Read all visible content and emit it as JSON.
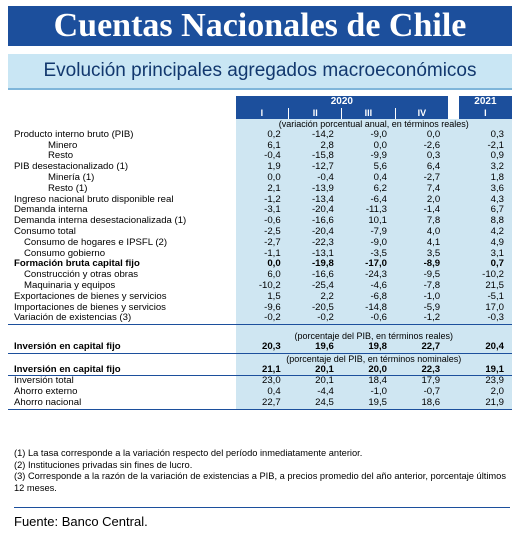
{
  "header": {
    "title": "Cuentas Nacionales de Chile",
    "subtitle": "Evolución principales agregados macroeconómicos"
  },
  "table": {
    "year_2020": "2020",
    "year_2021": "2021",
    "quarters_2020": [
      "I",
      "II",
      "III",
      "IV"
    ],
    "quarter_2021": "I",
    "note_growth": "(variación porcentual anual, en términos reales)",
    "note_real_pct": "(porcentaje del PIB, en términos reales)",
    "note_nominal_pct": "(porcentaje del PIB, en términos nominales)",
    "rows_growth": [
      {
        "label": "Producto interno bruto (PIB)",
        "indent": 0,
        "bold": false,
        "v": [
          "0,2",
          "-14,2",
          "-9,0",
          "0,0"
        ],
        "v21": "0,3"
      },
      {
        "label": "Minero",
        "indent": 2,
        "bold": false,
        "v": [
          "6,1",
          "2,8",
          "0,0",
          "-2,6"
        ],
        "v21": "-2,1"
      },
      {
        "label": "Resto",
        "indent": 2,
        "bold": false,
        "v": [
          "-0,4",
          "-15,8",
          "-9,9",
          "0,3"
        ],
        "v21": "0,9"
      },
      {
        "label": "PIB desestacionalizado (1)",
        "indent": 0,
        "bold": false,
        "v": [
          "1,9",
          "-12,7",
          "5,6",
          "6,4"
        ],
        "v21": "3,2"
      },
      {
        "label": "Minería (1)",
        "indent": 2,
        "bold": false,
        "v": [
          "0,0",
          "-0,4",
          "0,4",
          "-2,7"
        ],
        "v21": "1,8"
      },
      {
        "label": "Resto (1)",
        "indent": 2,
        "bold": false,
        "v": [
          "2,1",
          "-13,9",
          "6,2",
          "7,4"
        ],
        "v21": "3,6"
      },
      {
        "label": "Ingreso nacional bruto disponible real",
        "indent": 0,
        "bold": false,
        "v": [
          "-1,2",
          "-13,4",
          "-6,4",
          "2,0"
        ],
        "v21": "4,3"
      },
      {
        "label": "Demanda interna",
        "indent": 0,
        "bold": false,
        "v": [
          "-3,1",
          "-20,4",
          "-11,3",
          "-1,4"
        ],
        "v21": "6,7"
      },
      {
        "label": "Demanda interna desestacionalizada (1)",
        "indent": 0,
        "bold": false,
        "v": [
          "-0,6",
          "-16,6",
          "10,1",
          "7,8"
        ],
        "v21": "8,8"
      },
      {
        "label": "Consumo total",
        "indent": 0,
        "bold": false,
        "v": [
          "-2,5",
          "-20,4",
          "-7,9",
          "4,0"
        ],
        "v21": "4,2"
      },
      {
        "label": "Consumo de hogares e IPSFL (2)",
        "indent": 1,
        "bold": false,
        "v": [
          "-2,7",
          "-22,3",
          "-9,0",
          "4,1"
        ],
        "v21": "4,9"
      },
      {
        "label": "Consumo gobierno",
        "indent": 1,
        "bold": false,
        "v": [
          "-1,1",
          "-13,1",
          "-3,5",
          "3,5"
        ],
        "v21": "3,1"
      },
      {
        "label": "Formación bruta capital fijo",
        "indent": 0,
        "bold": true,
        "v": [
          "0,0",
          "-19,8",
          "-17,0",
          "-8,9"
        ],
        "v21": "0,7"
      },
      {
        "label": "Construcción y otras obras",
        "indent": 1,
        "bold": false,
        "v": [
          "6,0",
          "-16,6",
          "-24,3",
          "-9,5"
        ],
        "v21": "-10,2"
      },
      {
        "label": "Maquinaria y equipos",
        "indent": 1,
        "bold": false,
        "v": [
          "-10,2",
          "-25,4",
          "-4,6",
          "-7,8"
        ],
        "v21": "21,5"
      },
      {
        "label": "Exportaciones de bienes y servicios",
        "indent": 0,
        "bold": false,
        "v": [
          "1,5",
          "2,2",
          "-6,8",
          "-1,0"
        ],
        "v21": "-5,1"
      },
      {
        "label": "Importaciones de bienes y servicios",
        "indent": 0,
        "bold": false,
        "v": [
          "-9,6",
          "-20,5",
          "-14,8",
          "-5,9"
        ],
        "v21": "17,0"
      },
      {
        "label": "Variación de existencias (3)",
        "indent": 0,
        "bold": false,
        "v": [
          "-0,2",
          "-0,2",
          "-0,6",
          "-1,2"
        ],
        "v21": "-0,3"
      }
    ],
    "row_real": {
      "label": "Inversión en capital fijo",
      "v": [
        "20,3",
        "19,6",
        "19,8",
        "22,7"
      ],
      "v21": "20,4"
    },
    "rows_nominal": [
      {
        "label": "Inversión en capital fijo",
        "bold": true,
        "v": [
          "21,1",
          "20,1",
          "20,0",
          "22,3"
        ],
        "v21": "19,1"
      },
      {
        "label": "Inversión total",
        "bold": false,
        "v": [
          "23,0",
          "20,1",
          "18,4",
          "17,9"
        ],
        "v21": "23,9"
      },
      {
        "label": "Ahorro externo",
        "bold": false,
        "v": [
          "0,4",
          "-4,4",
          "-1,0",
          "-0,7"
        ],
        "v21": "2,0"
      },
      {
        "label": "Ahorro nacional",
        "bold": false,
        "v": [
          "22,7",
          "24,5",
          "19,5",
          "18,6"
        ],
        "v21": "21,9"
      }
    ]
  },
  "footnotes": [
    "(1) La tasa corresponde a la variación respecto del período inmediatamente anterior.",
    "(2) Instituciones privadas sin fines de lucro.",
    "(3) Corresponde a la razón de la variación de existencias a PIB, a precios promedio del año anterior, porcentaje últimos 12 meses."
  ],
  "source": "Fuente: Banco Central.",
  "colors": {
    "brand_blue": "#1c4f9c",
    "band_blue": "#cfe6f2",
    "subtitle_bg": "#c9e6f4"
  }
}
